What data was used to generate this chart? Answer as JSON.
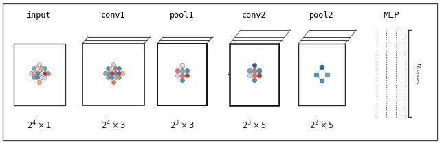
{
  "sections": [
    "input",
    "conv1",
    "pool1",
    "conv2",
    "pool2",
    "MLP"
  ],
  "red_dark": "#c0392b",
  "red_mid": "#e8705a",
  "red_light": "#f4a582",
  "red_vlight": "#fddbc7",
  "blue_dark": "#2166ac",
  "blue_mid": "#4393c3",
  "blue_light": "#6baed6",
  "blue_vlight": "#c6dbef",
  "gray": "#aaaaaa",
  "white_node": "#f0f0f0",
  "bg": "white"
}
